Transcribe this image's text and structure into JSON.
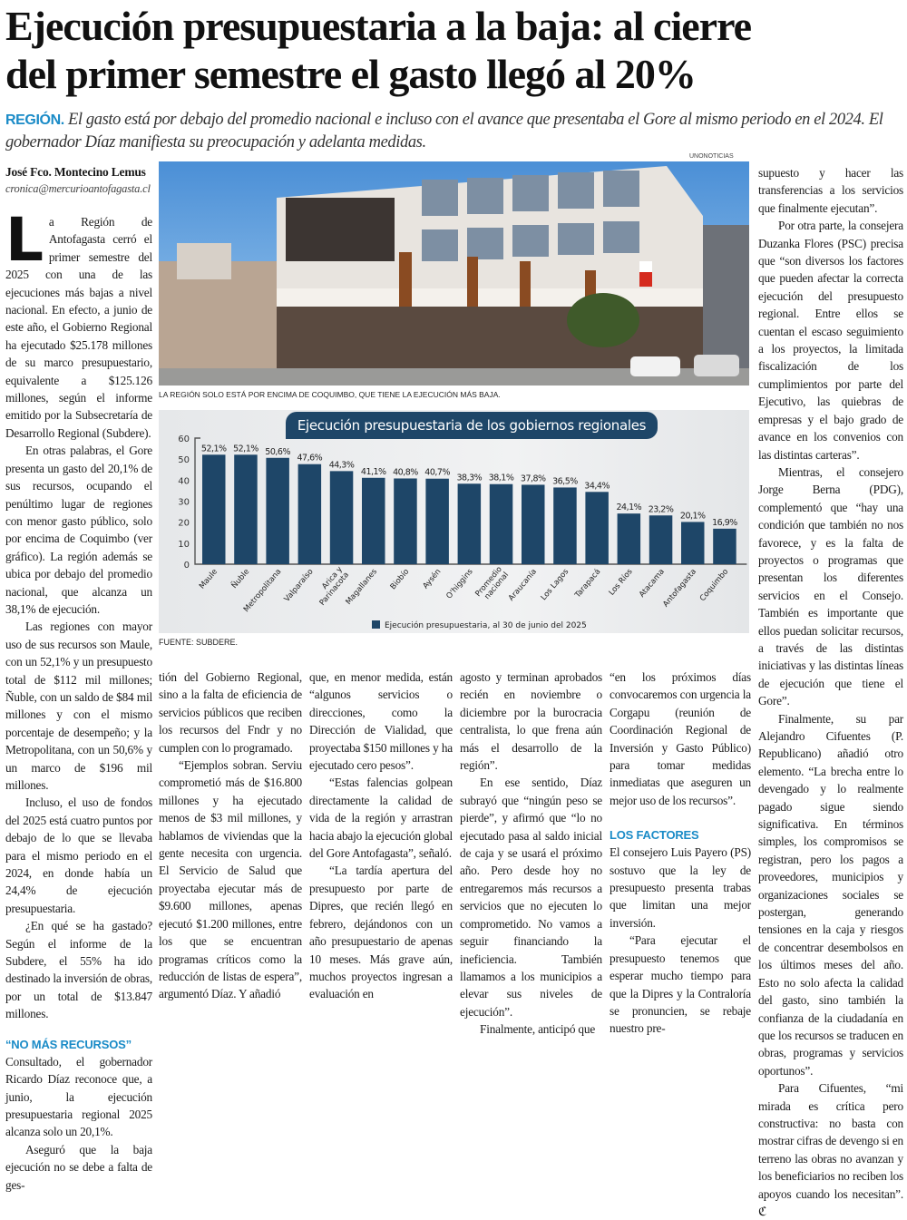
{
  "headline": {
    "line1": "Ejecución presupuestaria a la baja: al cierre",
    "line2": "del primer semestre el gasto llegó al 20%"
  },
  "deck": {
    "kicker": "REGIÓN.",
    "text": "El gasto está por debajo del promedio nacional e incluso con el avance que presentaba el Gore al mismo periodo en el 2024. El gobernador Díaz manifiesta su preocupación y adelanta medidas."
  },
  "byline": {
    "author": "José Fco. Montecino Lemus",
    "email": "cronica@mercurioantofagasta.cl"
  },
  "photo": {
    "credit": "UNONOTICIAS",
    "caption": "LA REGIÓN SOLO ESTÁ POR ENCIMA DE COQUIMBO, QUE TIENE LA EJECUCIÓN MÁS BAJA."
  },
  "chart_source": "FUENTE: SUBDERE.",
  "chart_data": {
    "type": "bar",
    "title": "Ejecución presupuestaria de los gobiernos regionales",
    "categories": [
      "Maule",
      "Ñuble",
      "Metropolitana",
      "Valparaíso",
      "Arica y Parinacota",
      "Magallanes",
      "Biobío",
      "Aysén",
      "O'higgins",
      "Promedio nacional",
      "Araucanía",
      "Los Lagos",
      "Tarapacá",
      "Los Ríos",
      "Atacama",
      "Antofagasta",
      "Coquimbo"
    ],
    "values": [
      52.1,
      52.1,
      50.6,
      47.6,
      44.3,
      41.1,
      40.8,
      40.7,
      38.3,
      38.1,
      37.8,
      36.5,
      34.4,
      24.1,
      23.2,
      20.1,
      16.9
    ],
    "labels": [
      "52,1%",
      "52,1%",
      "50,6%",
      "47,6%",
      "44,3%",
      "41,1%",
      "40,8%",
      "40,7%",
      "38,3%",
      "38,1%",
      "37,8%",
      "36,5%",
      "34,4%",
      "24,1%",
      "23,2%",
      "20,1%",
      "16,9%"
    ],
    "yticks": [
      "0",
      "10",
      "20",
      "30",
      "40",
      "50",
      "60"
    ],
    "ylim": [
      0,
      60
    ],
    "legend": "Ejecución presupuestaria, al 30 de junio del 2025",
    "legend_position": "bottom",
    "color": "#1e4668",
    "grid": false
  },
  "col1": {
    "dropcap": "L",
    "p": [
      "a Región de Antofagasta cerró el primer semestre del 2025 con una de las ejecuciones más bajas a nivel nacional. En efecto, a junio de este año, el Gobierno Regional ha ejecutado $25.178 millones de su marco presupuestario, equivalente a $125.126 millones, según el informe emitido por la Subsecretaría de Desarrollo Regional (Subdere).",
      "En otras palabras, el Gore presenta un gasto del 20,1% de sus recursos, ocupando el penúltimo lugar de regiones con menor gasto público, solo por encima de Coquimbo (ver gráfico). La región además se ubica por debajo del promedio nacional, que alcanza un 38,1% de ejecución.",
      "Las regiones con mayor uso de sus recursos son Maule, con un 52,1% y un presupuesto total de $112 mil millones; Ñuble, con un saldo de $84 mil millones y con el mismo porcentaje de desempeño; y la Metropolitana, con un 50,6% y un marco de $196 mil millones.",
      "Incluso, el uso de fondos del 2025 está cuatro puntos por debajo de lo que se llevaba para el mismo periodo en el 2024, en donde había un 24,4% de ejecución presupuestaria.",
      "¿En qué se ha gastado? Según el informe de la Subdere, el 55% ha ido destinado la inversión de obras, por un total de $13.847 millones."
    ],
    "subhead": "“NO MÁS RECURSOS”",
    "p2": [
      "Consultado, el gobernador Ricardo Díaz reconoce que, a junio, la ejecución presupuestaria regional 2025 alcanza solo un 20,1%.",
      "Aseguró que la baja ejecución no se debe a falta de ges-"
    ]
  },
  "col2": {
    "p": [
      "tión del Gobierno Regional, sino a la falta de eficiencia de servicios públicos que reciben los recursos del Fndr y no cumplen con lo programado.",
      "“Ejemplos sobran. Serviu comprometió más de $16.800 millones y ha ejecutado menos de $3 mil millones, y hablamos de viviendas que la gente necesita con urgencia. El Servicio de Salud que proyectaba ejecutar más de $9.600 millones, apenas ejecutó $1.200 millones, entre los que se encuentran programas críticos como la reducción de listas de espera”, argumentó Díaz. Y añadió"
    ]
  },
  "col3": {
    "p": [
      "que, en menor medida, están “algunos servicios o direcciones, como la Dirección de Vialidad, que proyectaba $150 millones y ha ejecutado cero pesos”.",
      "“Estas falencias golpean directamente la calidad de vida de la región y arrastran hacia abajo la ejecución global del Gore Antofagasta”, señaló.",
      "“La tardía apertura del presupuesto por parte de Dipres, que recién llegó en febrero, dejándonos con un año presupuestario de apenas 10 meses. Más grave aún, muchos proyectos ingresan a evaluación en"
    ]
  },
  "col4": {
    "p": [
      "agosto y terminan aprobados recién en noviembre o diciembre por la burocracia centralista, lo que frena aún más el desarrollo de la región”.",
      "En ese sentido, Díaz subrayó que “ningún peso se pierde”, y afirmó que “lo no ejecutado pasa al saldo inicial de caja y se usará el próximo año. Pero desde hoy no entregaremos más recursos a servicios que no ejecuten lo comprometido. No vamos a seguir financiando la ineficiencia. También llamamos a los municipios a elevar sus niveles de ejecución”.",
      "Finalmente, anticipó que"
    ]
  },
  "col5": {
    "p": [
      "“en los próximos días convocaremos con urgencia la Corgapu (reunión de Coordinación Regional de Inversión y Gasto Público) para tomar medidas inmediatas que aseguren un mejor uso de los recursos”."
    ],
    "subhead": "LOS FACTORES",
    "p2": [
      "El consejero Luis Payero (PS) sostuvo que la ley de presupuesto presenta trabas que limitan una mejor inversión.",
      "“Para ejecutar el presupuesto tenemos que esperar mucho tiempo para que la Dipres y la Contraloría se pronuncien, se rebaje nuestro pre-"
    ]
  },
  "col6": {
    "p": [
      "supuesto y hacer las transferencias a los servicios que finalmente ejecutan”.",
      "Por otra parte, la consejera Duzanka Flores (PSC) precisa que “son diversos los factores que pueden afectar la correcta ejecución del presupuesto regional. Entre ellos se cuentan el escaso seguimiento a los proyectos, la limitada fiscalización de los cumplimientos por parte del Ejecutivo, las quiebras de empresas y el bajo grado de avance en los convenios con las distintas carteras”.",
      "Mientras, el consejero Jorge Berna (PDG), complementó que “hay una condición que también no nos favorece, y es la falta de proyectos o programas que presentan los diferentes servicios en el Consejo. También es importante que ellos puedan solicitar recursos, a través de las distintas iniciativas y las distintas líneas de ejecución que tiene el Gore”.",
      "Finalmente, su par Alejandro Cifuentes (P. Republicano) añadió otro elemento. “La brecha entre lo devengado y lo realmente pagado sigue siendo significativa. En términos simples, los compromisos se registran, pero los pagos a proveedores, municipios y organizaciones sociales se postergan, generando tensiones en la caja y riesgos de concentrar desembolsos en los últimos meses del año. Esto no solo afecta la calidad del gasto, sino también la confianza de la ciudadanía en que los recursos se traducen en obras, programas y servicios oportunos”.",
      "Para Cifuentes, “mi mirada es crítica pero constructiva: no basta con mostrar cifras de devengo si en terreno las obras no avanzan y los beneficiarios no reciben los apoyos cuando los necesitan”. ℭ"
    ]
  }
}
